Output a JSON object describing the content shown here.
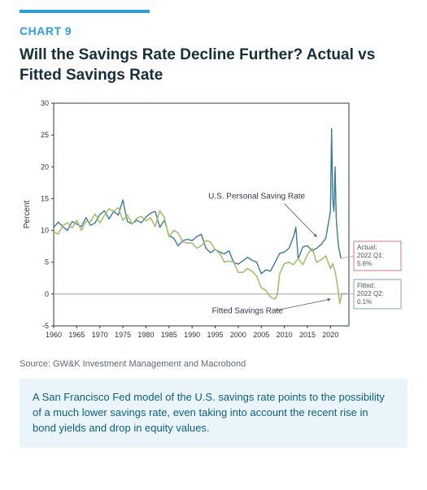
{
  "accent_color": "#29a0dc",
  "kicker": "CHART 9",
  "title": "Will the Savings Rate Decline Further? Actual vs Fitted Savings Rate",
  "source": "Source: GW&K Investment Management and Macrobond",
  "footer": "A San Francisco Fed model of the U.S. savings rate points to the possibility of a much lower savings rate, even taking into account the recent rise in bond yields and drop in equity values.",
  "chart": {
    "type": "line",
    "background_color": "#ffffff",
    "border_color": "#2b3a44",
    "grid": false,
    "x": {
      "lim": [
        1960,
        2024
      ],
      "ticks": [
        1960,
        1965,
        1970,
        1975,
        1980,
        1985,
        1990,
        1995,
        2000,
        2005,
        2010,
        2015,
        2020
      ],
      "fontsize": 9,
      "color": "#333333"
    },
    "y": {
      "label": "Percent",
      "label_fontsize": 10,
      "lim": [
        -5,
        30
      ],
      "ticks": [
        -5,
        0,
        5,
        10,
        15,
        20,
        25,
        30
      ],
      "fontsize": 9,
      "color": "#333333",
      "zero_line_color": "#808080"
    },
    "series": [
      {
        "name": "U.S. Personal Saving Rate",
        "color": "#3b7b94",
        "width": 1.4,
        "annotation": {
          "text": "U.S. Personal Saving Rate",
          "x": 2004,
          "y": 15,
          "fontsize": 10,
          "color": "#303a40"
        },
        "callout": {
          "text_lines": [
            "Actual:",
            "2022 Q1:",
            "5.6%"
          ],
          "border": "#c06060",
          "fontsize": 8,
          "text_color": "#555555"
        },
        "data": [
          [
            1960,
            10.5
          ],
          [
            1961,
            11.3
          ],
          [
            1962,
            10.6
          ],
          [
            1963,
            10.0
          ],
          [
            1964,
            11.4
          ],
          [
            1965,
            11.0
          ],
          [
            1966,
            10.6
          ],
          [
            1967,
            12.0
          ],
          [
            1968,
            10.8
          ],
          [
            1969,
            11.2
          ],
          [
            1970,
            12.5
          ],
          [
            1971,
            13.1
          ],
          [
            1972,
            11.8
          ],
          [
            1973,
            13.0
          ],
          [
            1974,
            12.4
          ],
          [
            1975,
            14.8
          ],
          [
            1975.5,
            13.0
          ],
          [
            1976,
            11.4
          ],
          [
            1977,
            11.0
          ],
          [
            1978,
            11.6
          ],
          [
            1979,
            11.2
          ],
          [
            1980,
            12.1
          ],
          [
            1981,
            12.7
          ],
          [
            1982,
            13.0
          ],
          [
            1983,
            10.5
          ],
          [
            1984,
            11.6
          ],
          [
            1985,
            9.2
          ],
          [
            1986,
            8.8
          ],
          [
            1987,
            7.6
          ],
          [
            1988,
            8.4
          ],
          [
            1989,
            8.6
          ],
          [
            1990,
            8.4
          ],
          [
            1991,
            9.0
          ],
          [
            1992,
            9.4
          ],
          [
            1993,
            7.2
          ],
          [
            1994,
            6.5
          ],
          [
            1995,
            7.0
          ],
          [
            1996,
            6.6
          ],
          [
            1997,
            6.3
          ],
          [
            1998,
            6.8
          ],
          [
            1999,
            5.0
          ],
          [
            2000,
            4.7
          ],
          [
            2001,
            5.2
          ],
          [
            2002,
            5.8
          ],
          [
            2003,
            5.3
          ],
          [
            2004,
            5.0
          ],
          [
            2005,
            3.2
          ],
          [
            2006,
            3.8
          ],
          [
            2007,
            3.6
          ],
          [
            2008,
            5.0
          ],
          [
            2009,
            6.4
          ],
          [
            2010,
            6.6
          ],
          [
            2011,
            7.2
          ],
          [
            2012,
            9.0
          ],
          [
            2012.5,
            10.5
          ],
          [
            2013,
            5.5
          ],
          [
            2014,
            7.4
          ],
          [
            2015,
            7.6
          ],
          [
            2016,
            6.8
          ],
          [
            2017,
            7.2
          ],
          [
            2018,
            7.8
          ],
          [
            2019,
            8.8
          ],
          [
            2020,
            13.0
          ],
          [
            2020.25,
            26.0
          ],
          [
            2020.5,
            15.0
          ],
          [
            2020.75,
            13.0
          ],
          [
            2021,
            20.0
          ],
          [
            2021.25,
            12.0
          ],
          [
            2021.5,
            9.5
          ],
          [
            2021.75,
            7.5
          ],
          [
            2022,
            6.5
          ],
          [
            2022.25,
            5.6
          ]
        ]
      },
      {
        "name": "Fitted Savings Rate",
        "color": "#a8be6e",
        "width": 1.6,
        "annotation": {
          "text": "Fitted Savings Rate",
          "x": 2002,
          "y": -3,
          "fontsize": 10,
          "color": "#303a40"
        },
        "callout": {
          "text_lines": [
            "Fitted:",
            "2022 Q2:",
            "0.1%"
          ],
          "border": "#5a93ac",
          "fontsize": 8,
          "text_color": "#555555"
        },
        "data": [
          [
            1960,
            9.8
          ],
          [
            1961,
            9.4
          ],
          [
            1962,
            10.8
          ],
          [
            1963,
            11.2
          ],
          [
            1964,
            10.4
          ],
          [
            1965,
            11.6
          ],
          [
            1966,
            10.0
          ],
          [
            1967,
            11.4
          ],
          [
            1968,
            11.4
          ],
          [
            1969,
            12.6
          ],
          [
            1970,
            11.2
          ],
          [
            1971,
            12.4
          ],
          [
            1972,
            13.4
          ],
          [
            1973,
            13.0
          ],
          [
            1974,
            13.6
          ],
          [
            1975,
            11.6
          ],
          [
            1976,
            12.4
          ],
          [
            1977,
            11.0
          ],
          [
            1978,
            11.9
          ],
          [
            1979,
            12.2
          ],
          [
            1980,
            11.5
          ],
          [
            1981,
            12.0
          ],
          [
            1982,
            10.6
          ],
          [
            1983,
            13.1
          ],
          [
            1984,
            12.0
          ],
          [
            1985,
            9.0
          ],
          [
            1986,
            10.0
          ],
          [
            1987,
            9.6
          ],
          [
            1988,
            8.2
          ],
          [
            1989,
            8.0
          ],
          [
            1990,
            8.0
          ],
          [
            1991,
            7.2
          ],
          [
            1992,
            7.6
          ],
          [
            1993,
            8.4
          ],
          [
            1994,
            8.2
          ],
          [
            1995,
            7.0
          ],
          [
            1996,
            6.4
          ],
          [
            1997,
            5.0
          ],
          [
            1998,
            5.2
          ],
          [
            1999,
            5.0
          ],
          [
            2000,
            3.4
          ],
          [
            2001,
            3.4
          ],
          [
            2002,
            4.0
          ],
          [
            2003,
            3.6
          ],
          [
            2004,
            2.8
          ],
          [
            2005,
            1.0
          ],
          [
            2006,
            0.6
          ],
          [
            2007,
            -0.5
          ],
          [
            2008,
            -0.8
          ],
          [
            2008.5,
            0.0
          ],
          [
            2009,
            3.2
          ],
          [
            2010,
            4.8
          ],
          [
            2011,
            5.0
          ],
          [
            2012,
            4.6
          ],
          [
            2013,
            5.6
          ],
          [
            2014,
            4.6
          ],
          [
            2015,
            6.2
          ],
          [
            2016,
            7.2
          ],
          [
            2017,
            5.0
          ],
          [
            2018,
            5.4
          ],
          [
            2019,
            6.0
          ],
          [
            2020,
            4.0
          ],
          [
            2020.5,
            4.8
          ],
          [
            2021,
            3.5
          ],
          [
            2021.5,
            1.5
          ],
          [
            2022,
            -1.5
          ],
          [
            2022.5,
            0.1
          ]
        ]
      }
    ],
    "annotation_arrows": [
      {
        "from": [
          2010,
          14.2
        ],
        "to": [
          2017,
          9.0
        ],
        "color": "#555555"
      },
      {
        "from": [
          2008,
          -2.6
        ],
        "to": [
          2020,
          -0.8
        ],
        "color": "#555555"
      }
    ]
  }
}
